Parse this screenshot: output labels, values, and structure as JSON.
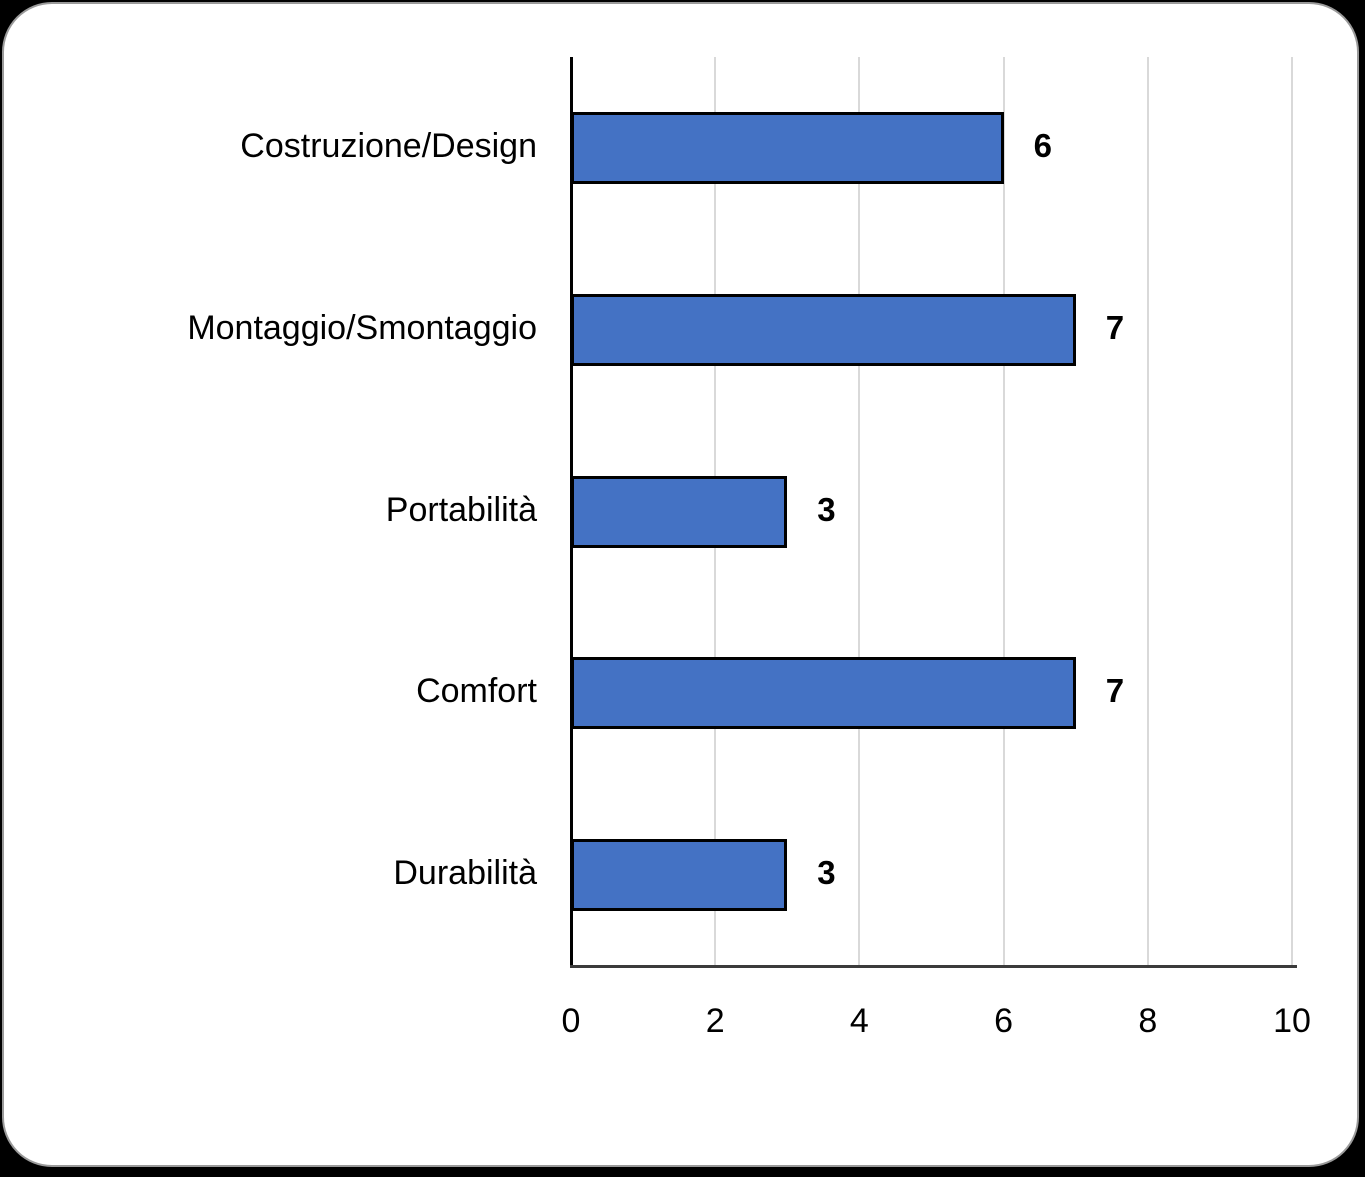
{
  "chart_data": {
    "type": "bar",
    "orientation": "horizontal",
    "title": "",
    "xlabel": "",
    "ylabel": "",
    "categories": [
      "Costruzione/Design",
      "Montaggio/Smontaggio",
      "Portabilità",
      "Comfort",
      "Durabilità"
    ],
    "values": [
      6,
      7,
      3,
      7,
      3
    ],
    "data_labels": [
      "6",
      "7",
      "3",
      "7",
      "3"
    ],
    "xlim": [
      0,
      10
    ],
    "x_ticks": [
      0,
      2,
      4,
      6,
      8,
      10
    ],
    "tick_labels": [
      "0",
      "2",
      "4",
      "6",
      "8",
      "10"
    ],
    "grid": "vertical-on",
    "legend": "none",
    "colors": {
      "bar_fill": "#4472C4",
      "bar_border": "#000000",
      "gridline": "#D9D9D9",
      "axis_line": "#000000",
      "text": "#000000",
      "card_background": "#FFFFFF",
      "page_background": "#000000"
    }
  }
}
